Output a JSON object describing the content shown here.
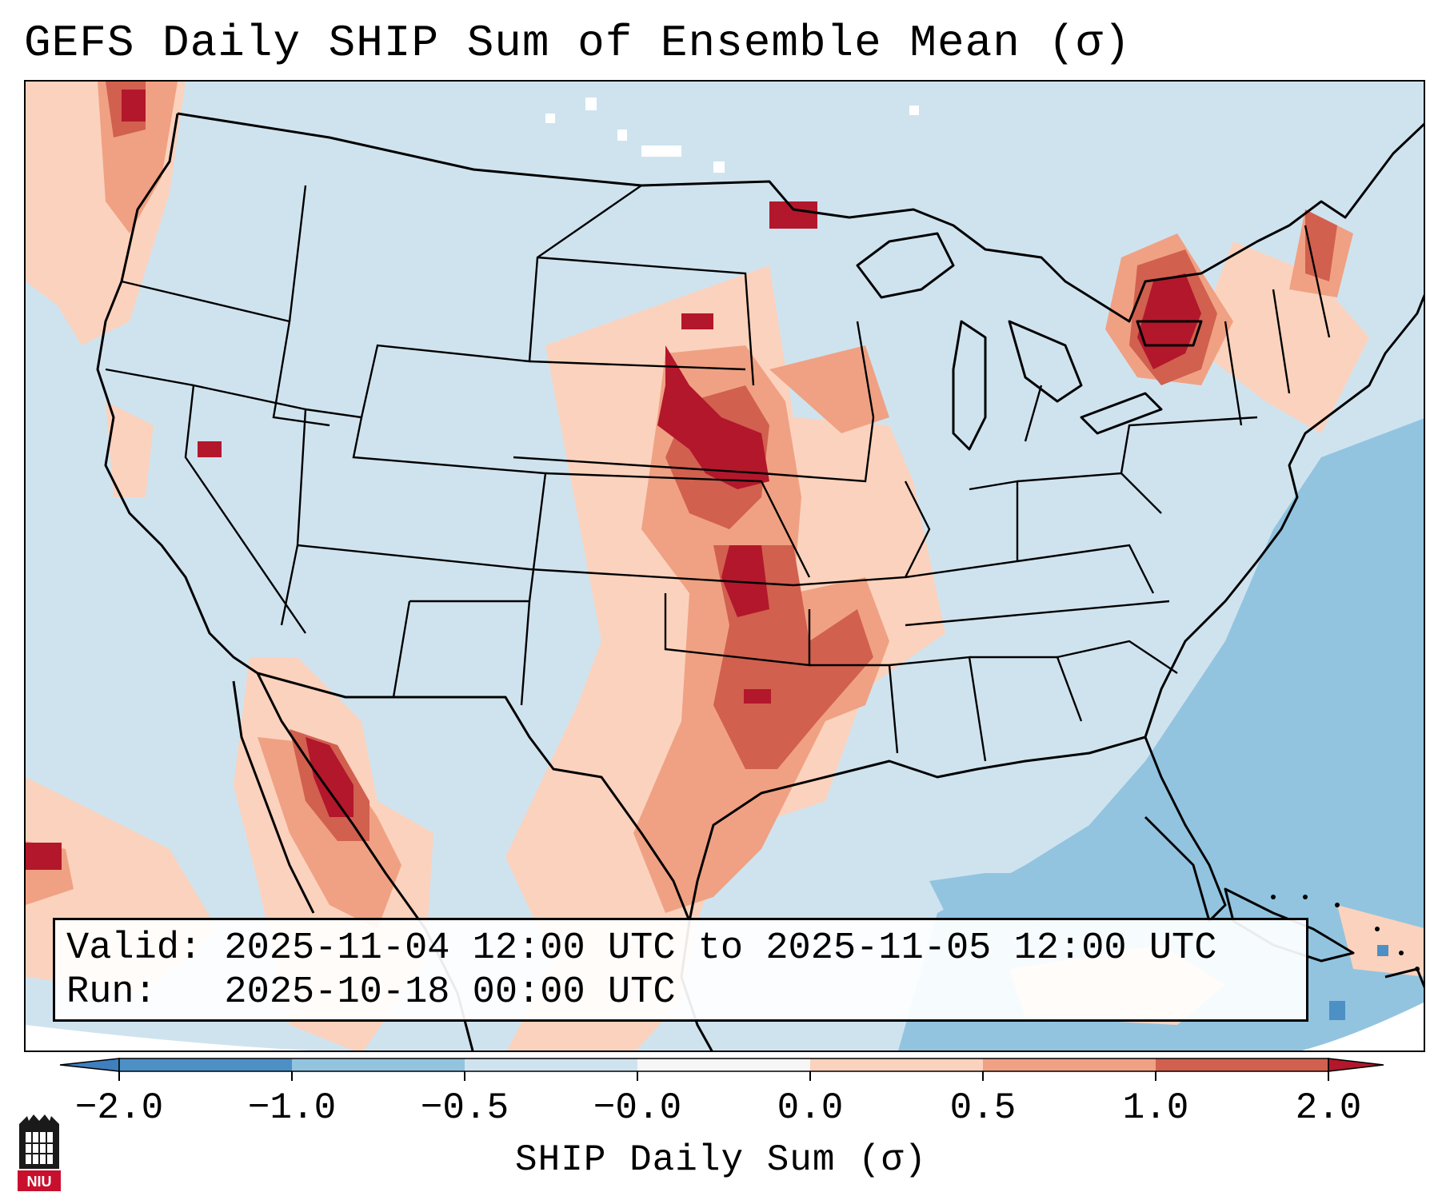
{
  "title": "GEFS Daily SHIP Sum of Ensemble Mean (σ)",
  "info": {
    "valid_line": "Valid: 2025-11-04 12:00 UTC to 2025-11-05 12:00 UTC",
    "run_line": "Run:   2025-10-18 00:00 UTC"
  },
  "colorbar": {
    "label": "SHIP Daily Sum (σ)",
    "ticks": [
      "−2.0",
      "−1.0",
      "−0.5",
      "−0.0",
      "0.0",
      "0.5",
      "1.0",
      "2.0"
    ],
    "bins": [
      {
        "range": "< -2.0",
        "color": "#3f7fbe"
      },
      {
        "range": "-2.0 to -1.0",
        "color": "#4d90c6"
      },
      {
        "range": "-1.0 to -0.5",
        "color": "#92c4df"
      },
      {
        "range": "-0.5 to -0.0",
        "color": "#cfe3ef"
      },
      {
        "range": "-0.0 to 0.0",
        "color": "#f6f6f6"
      },
      {
        "range": "0.0 to 0.5",
        "color": "#fbd2bd"
      },
      {
        "range": "0.5 to 1.0",
        "color": "#f0a183"
      },
      {
        "range": "1.0 to 2.0",
        "color": "#d1604f"
      },
      {
        "range": "> 2.0",
        "color": "#b3172c"
      }
    ]
  },
  "logo": {
    "text": "NIU",
    "color": "#c8102e"
  }
}
